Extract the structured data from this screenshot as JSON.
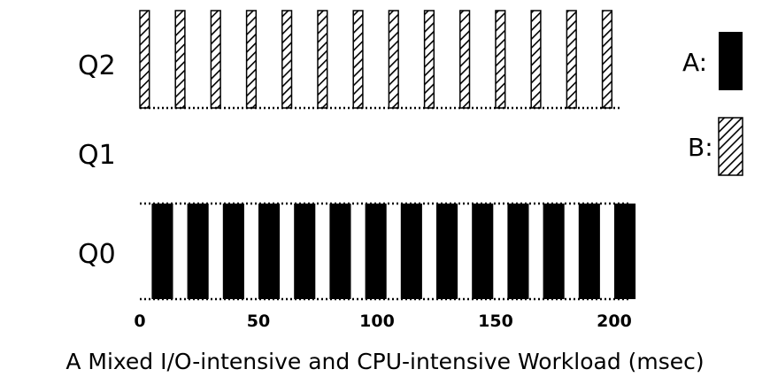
{
  "queues": [
    {
      "id": "q2",
      "label": "Q2"
    },
    {
      "id": "q1",
      "label": "Q1"
    },
    {
      "id": "q0",
      "label": "Q0"
    }
  ],
  "legend": {
    "a_label": "A:",
    "b_label": "B:"
  },
  "axis": {
    "ticks": [
      0,
      50,
      100,
      150,
      200
    ],
    "range": [
      0,
      200
    ]
  },
  "caption": "A Mixed I/O-intensive and CPU-intensive Workload (msec)",
  "jobs": {
    "A": {
      "queue": "Q0",
      "fill": "solid",
      "color": "#000000",
      "slices": [
        [
          5,
          14
        ],
        [
          20,
          29
        ],
        [
          35,
          44
        ],
        [
          50,
          59
        ],
        [
          65,
          74
        ],
        [
          80,
          89
        ],
        [
          95,
          104
        ],
        [
          110,
          119
        ],
        [
          125,
          134
        ],
        [
          140,
          149
        ],
        [
          155,
          164
        ],
        [
          170,
          179
        ],
        [
          185,
          194
        ],
        [
          200,
          209
        ]
      ]
    },
    "B": {
      "queue": "Q2",
      "fill": "hatched",
      "color": "#000000",
      "slices": [
        [
          0,
          4
        ],
        [
          15,
          19
        ],
        [
          30,
          34
        ],
        [
          45,
          49
        ],
        [
          60,
          64
        ],
        [
          75,
          79
        ],
        [
          90,
          94
        ],
        [
          105,
          109
        ],
        [
          120,
          124
        ],
        [
          135,
          139
        ],
        [
          150,
          154
        ],
        [
          165,
          169
        ],
        [
          180,
          184
        ],
        [
          195,
          199
        ]
      ]
    }
  }
}
